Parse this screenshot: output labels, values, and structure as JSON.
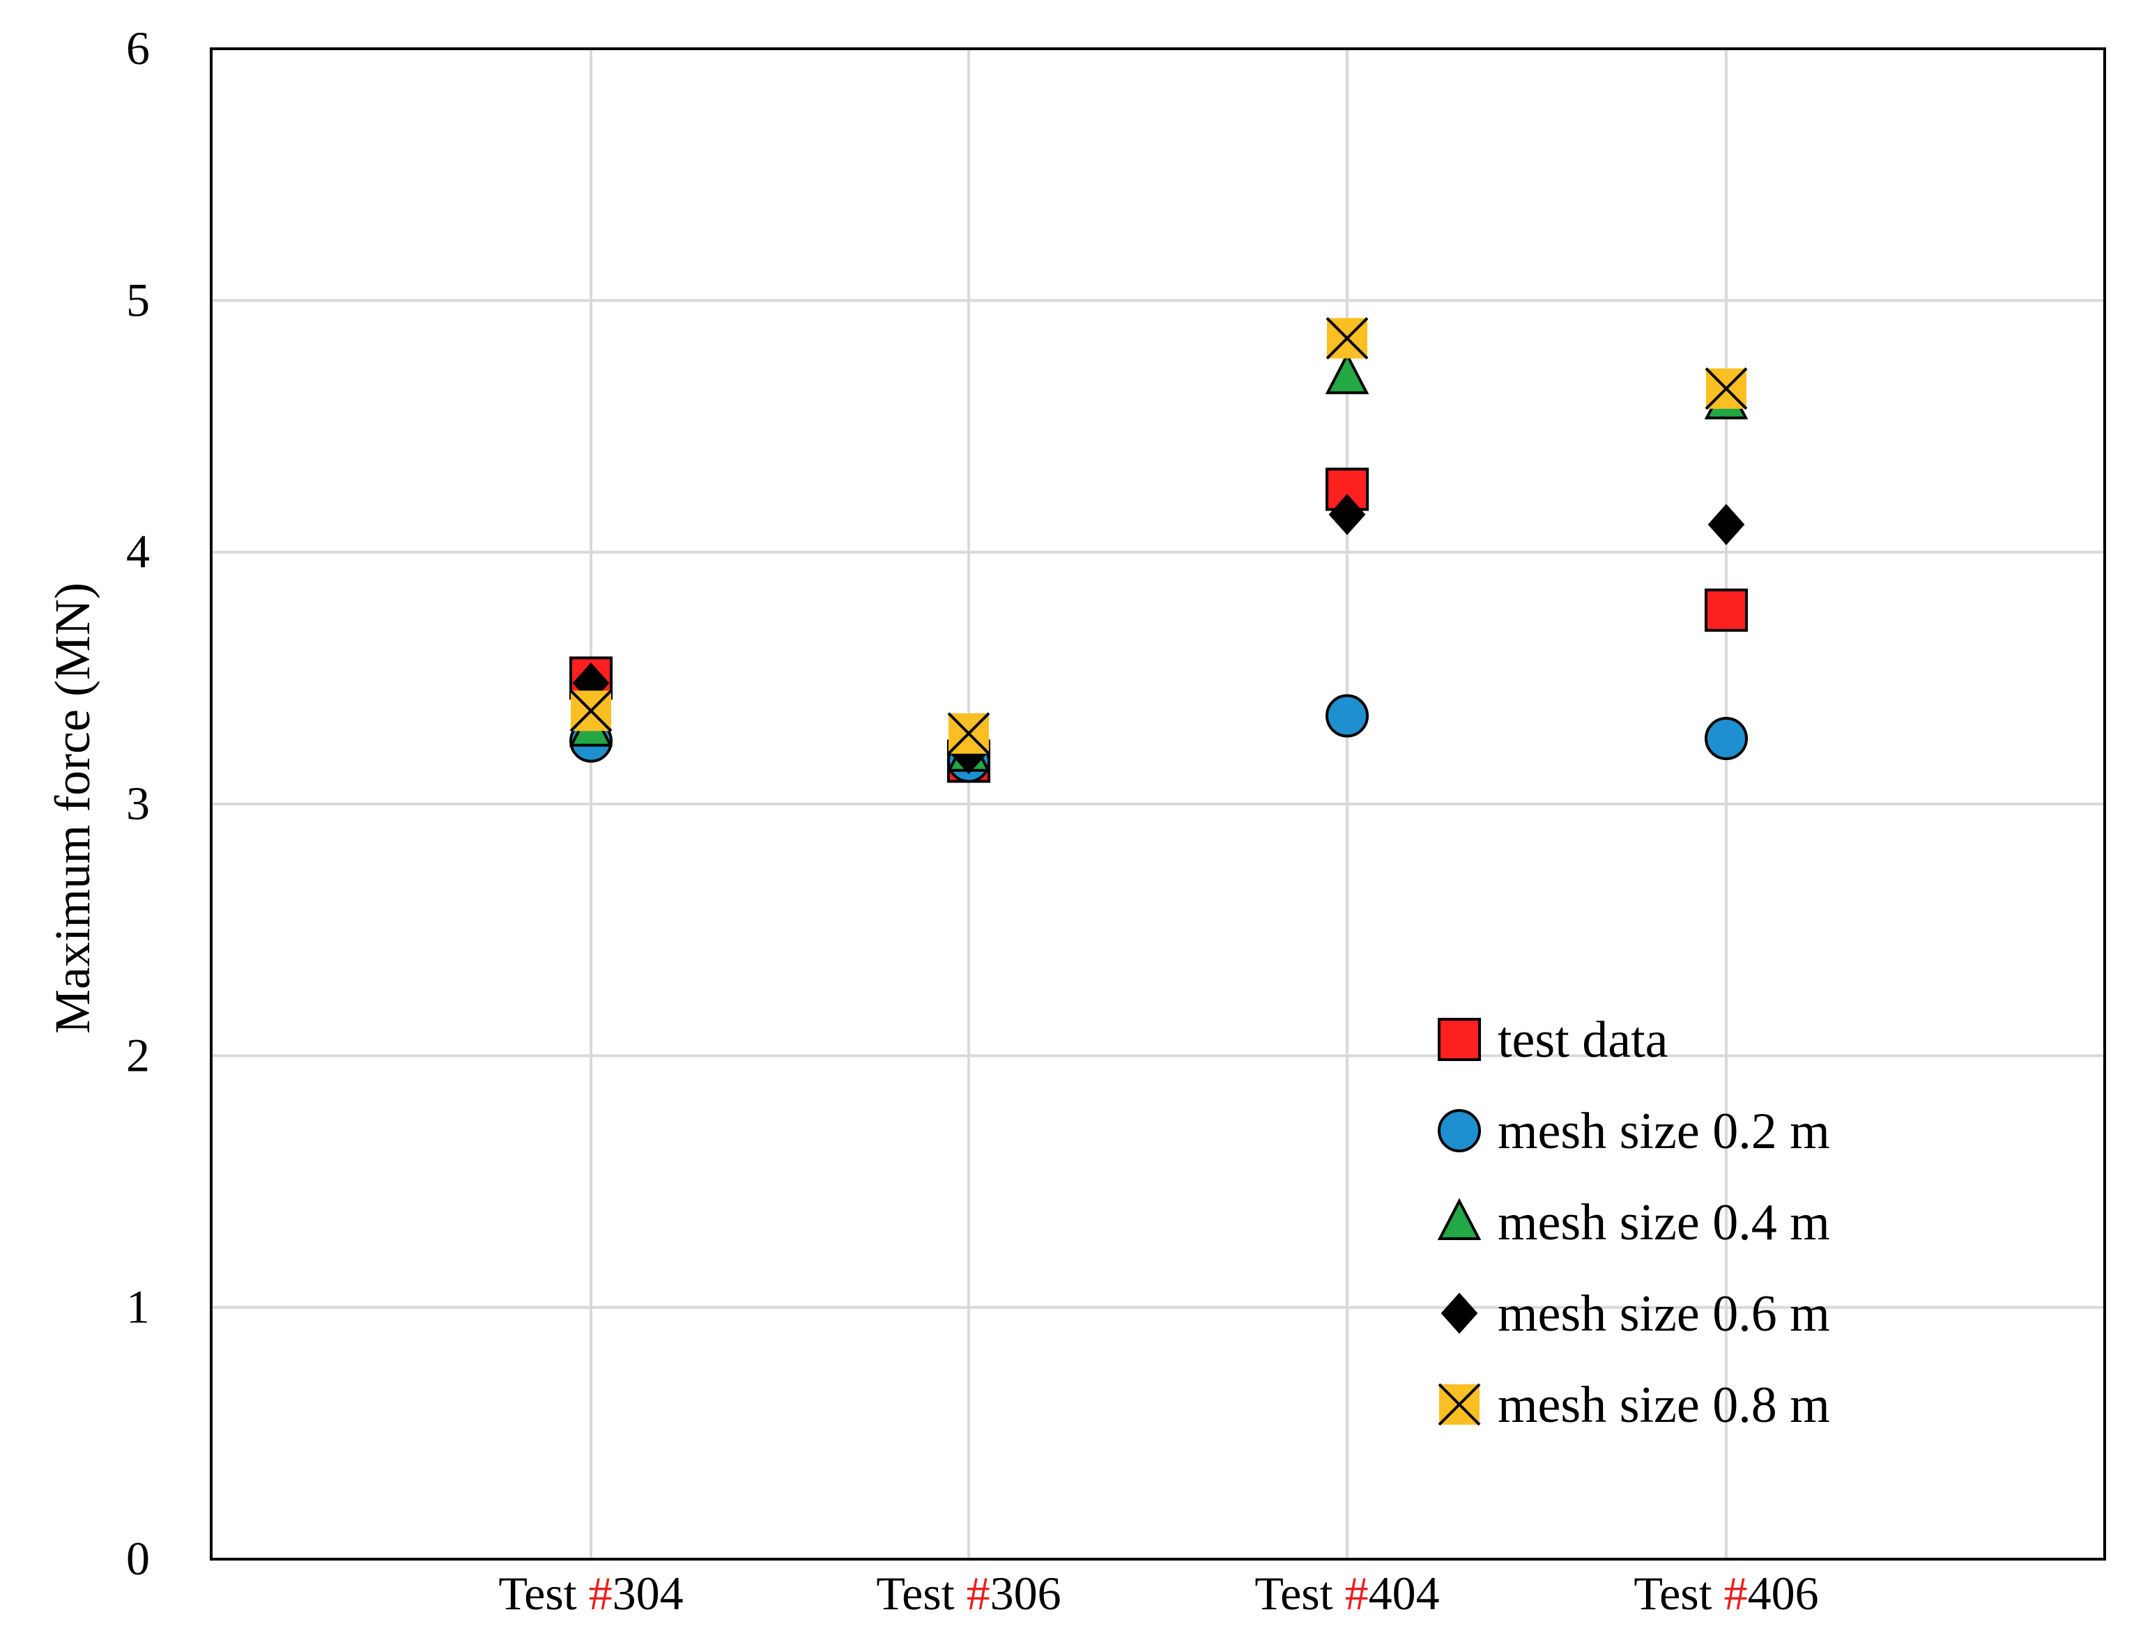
{
  "chart_data": {
    "type": "scatter",
    "title": "",
    "xlabel": "",
    "ylabel": "Maximum force (MN)",
    "ylim": [
      0,
      6
    ],
    "yticks": [
      0,
      1,
      2,
      3,
      4,
      5,
      6
    ],
    "grid": true,
    "legend_position": "bottom-right",
    "categories": [
      {
        "prefix": "Test ",
        "hash": "#",
        "number": "304"
      },
      {
        "prefix": "Test ",
        "hash": "#",
        "number": "306"
      },
      {
        "prefix": "Test ",
        "hash": "#",
        "number": "404"
      },
      {
        "prefix": "Test ",
        "hash": "#",
        "number": "406"
      }
    ],
    "series": [
      {
        "name": "test data",
        "marker": "square",
        "fill": "#ff2020",
        "values": [
          3.5,
          3.17,
          4.25,
          3.77
        ]
      },
      {
        "name": "mesh size 0.2 m",
        "marker": "circle",
        "fill": "#1e90d0",
        "values": [
          3.25,
          3.17,
          3.35,
          3.26
        ]
      },
      {
        "name": "mesh size 0.4 m",
        "marker": "triangle",
        "fill": "#22a845",
        "values": [
          3.3,
          3.2,
          4.7,
          4.6
        ]
      },
      {
        "name": "mesh size 0.6 m",
        "marker": "diamond",
        "fill": "#000000",
        "values": [
          3.48,
          3.2,
          4.15,
          4.11
        ]
      },
      {
        "name": "mesh size 0.8 m",
        "marker": "xsquare",
        "fill": "#fbbf24",
        "values": [
          3.37,
          3.28,
          4.85,
          4.65
        ]
      }
    ],
    "colors": {
      "hash": "#ee1c1c",
      "grid": "#d9d9d9",
      "axis": "#000000"
    }
  }
}
